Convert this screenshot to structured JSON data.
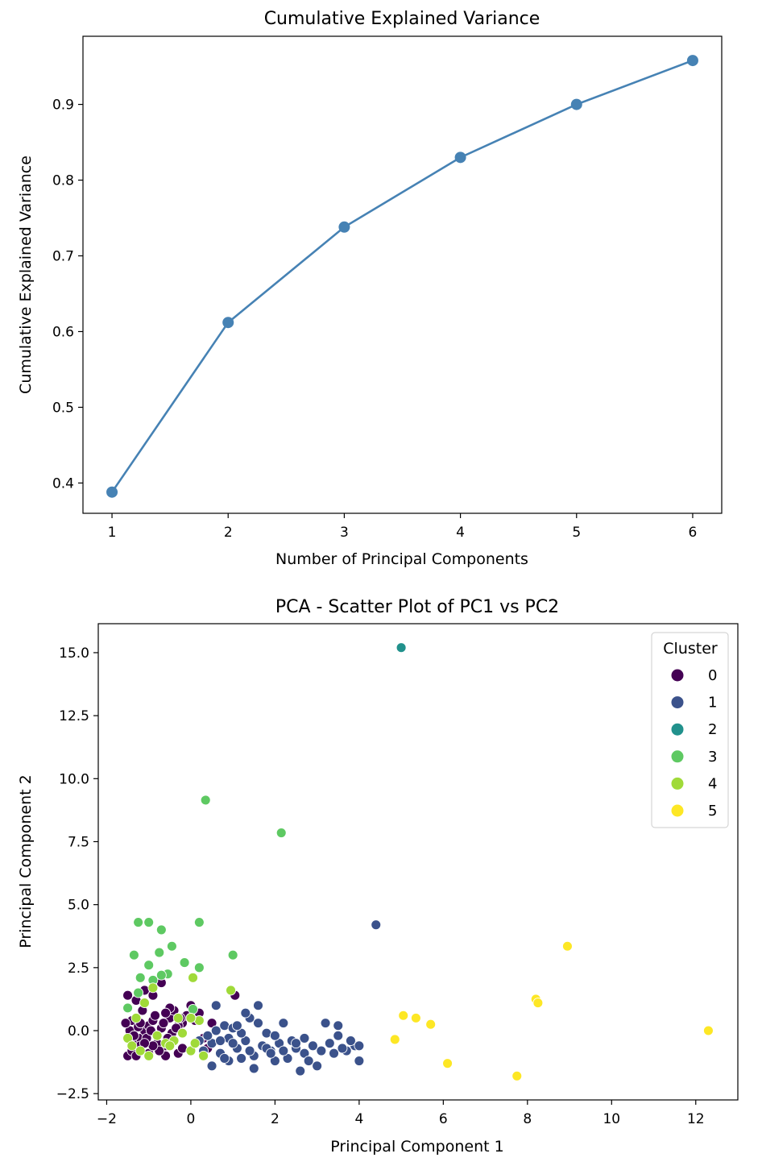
{
  "chart_data": [
    {
      "type": "line",
      "title": "Cumulative Explained Variance",
      "xlabel": "Number of Principal Components",
      "ylabel": "Cumulative Explained Variance",
      "x": [
        1,
        2,
        3,
        4,
        5,
        6
      ],
      "y": [
        0.388,
        0.612,
        0.738,
        0.83,
        0.9,
        0.958
      ],
      "xlim": [
        0.75,
        6.25
      ],
      "ylim": [
        0.36,
        0.99
      ],
      "xticks": [
        1,
        2,
        3,
        4,
        5,
        6
      ],
      "yticks": [
        0.4,
        0.5,
        0.6,
        0.7,
        0.8,
        0.9
      ],
      "color": "#4682b4",
      "grid": false
    },
    {
      "type": "scatter",
      "title": "PCA - Scatter Plot of PC1 vs PC2",
      "xlabel": "Principal Component 1",
      "ylabel": "Principal Component 2",
      "xlim": [
        -2.2,
        13.0
      ],
      "ylim": [
        -2.75,
        16.15
      ],
      "xticks": [
        -2,
        0,
        2,
        4,
        6,
        8,
        10,
        12
      ],
      "yticks": [
        -2.5,
        0.0,
        2.5,
        5.0,
        7.5,
        10.0,
        12.5,
        15.0
      ],
      "xtick_labels": [
        "−2",
        "0",
        "2",
        "4",
        "6",
        "8",
        "10",
        "12"
      ],
      "ytick_labels": [
        "−2.5",
        "0.0",
        "2.5",
        "5.0",
        "7.5",
        "10.0",
        "12.5",
        "15.0"
      ],
      "grid": false,
      "legend": {
        "title": "Cluster",
        "placement": "upper right"
      },
      "series": [
        {
          "name": "0",
          "color": "#440154",
          "points": [
            [
              -1.5,
              -1.0
            ],
            [
              -1.4,
              -0.8
            ],
            [
              -1.3,
              -0.5
            ],
            [
              -1.2,
              -0.3
            ],
            [
              -1.1,
              0.0
            ],
            [
              -1.0,
              0.2
            ],
            [
              -0.9,
              0.4
            ],
            [
              -0.8,
              -0.2
            ],
            [
              -0.7,
              0.1
            ],
            [
              -0.6,
              -0.6
            ],
            [
              -0.5,
              0.5
            ],
            [
              -0.4,
              0.8
            ],
            [
              -0.3,
              -0.9
            ],
            [
              -0.2,
              0.3
            ],
            [
              -0.1,
              0.6
            ],
            [
              0.0,
              1.0
            ],
            [
              -1.5,
              1.4
            ],
            [
              -1.3,
              1.2
            ],
            [
              -1.1,
              1.6
            ],
            [
              -0.9,
              1.4
            ],
            [
              -0.7,
              1.9
            ],
            [
              -0.5,
              0.9
            ],
            [
              -0.3,
              0.2
            ],
            [
              -1.4,
              0.4
            ],
            [
              -1.2,
              -0.6
            ],
            [
              -1.0,
              -0.9
            ],
            [
              -0.8,
              -0.5
            ],
            [
              -0.6,
              -1.0
            ],
            [
              -0.4,
              -0.4
            ],
            [
              -0.2,
              -0.7
            ],
            [
              0.1,
              0.4
            ],
            [
              0.3,
              -0.3
            ],
            [
              0.5,
              0.3
            ],
            [
              1.05,
              1.4
            ],
            [
              -1.45,
              0.0
            ],
            [
              -1.25,
              0.15
            ],
            [
              -1.05,
              -0.3
            ],
            [
              -0.85,
              0.6
            ],
            [
              -0.65,
              0.3
            ],
            [
              -0.45,
              -0.1
            ],
            [
              -0.25,
              0.5
            ],
            [
              -1.35,
              -0.2
            ],
            [
              -1.15,
              0.8
            ],
            [
              -0.95,
              0.0
            ],
            [
              -0.75,
              -0.8
            ],
            [
              -0.55,
              -0.3
            ],
            [
              -0.35,
              0.1
            ],
            [
              -1.55,
              0.3
            ],
            [
              -1.2,
              0.3
            ],
            [
              -0.9,
              -0.6
            ],
            [
              0.2,
              0.7
            ],
            [
              -0.6,
              0.7
            ],
            [
              -1.3,
              -1.0
            ],
            [
              -1.1,
              -0.5
            ],
            [
              0.4,
              -0.7
            ]
          ]
        },
        {
          "name": "1",
          "color": "#3b528b",
          "points": [
            [
              0.3,
              -0.8
            ],
            [
              0.5,
              -0.5
            ],
            [
              0.7,
              -0.9
            ],
            [
              0.9,
              -0.3
            ],
            [
              1.1,
              -0.7
            ],
            [
              1.3,
              -0.4
            ],
            [
              1.5,
              -1.0
            ],
            [
              1.7,
              -0.6
            ],
            [
              1.9,
              -0.8
            ],
            [
              2.1,
              -0.5
            ],
            [
              2.3,
              -1.1
            ],
            [
              2.5,
              -0.7
            ],
            [
              2.7,
              -0.9
            ],
            [
              2.9,
              -0.6
            ],
            [
              3.1,
              -0.8
            ],
            [
              3.3,
              -0.5
            ],
            [
              3.5,
              -0.2
            ],
            [
              3.7,
              -0.8
            ],
            [
              3.9,
              -0.6
            ],
            [
              4.0,
              -1.2
            ],
            [
              0.6,
              0.0
            ],
            [
              0.8,
              0.2
            ],
            [
              1.0,
              0.1
            ],
            [
              1.2,
              -0.1
            ],
            [
              1.4,
              0.5
            ],
            [
              1.6,
              0.3
            ],
            [
              1.8,
              -0.1
            ],
            [
              2.0,
              -0.2
            ],
            [
              2.2,
              0.3
            ],
            [
              2.4,
              -0.4
            ],
            [
              2.6,
              -1.6
            ],
            [
              3.0,
              -1.4
            ],
            [
              3.2,
              0.3
            ],
            [
              3.5,
              0.2
            ],
            [
              0.6,
              1.0
            ],
            [
              1.3,
              0.7
            ],
            [
              1.6,
              1.0
            ],
            [
              0.5,
              -1.4
            ],
            [
              0.9,
              -1.2
            ],
            [
              1.5,
              -1.5
            ],
            [
              2.0,
              -1.2
            ],
            [
              2.8,
              -1.2
            ],
            [
              4.0,
              -0.6
            ],
            [
              4.4,
              4.2
            ],
            [
              0.4,
              -0.2
            ],
            [
              0.7,
              -0.4
            ],
            [
              1.0,
              -0.5
            ],
            [
              1.2,
              -1.1
            ],
            [
              1.4,
              -0.8
            ],
            [
              1.8,
              -0.7
            ],
            [
              2.2,
              -0.8
            ],
            [
              2.5,
              -0.5
            ],
            [
              3.4,
              -0.9
            ],
            [
              3.8,
              -0.4
            ],
            [
              0.8,
              -1.1
            ],
            [
              1.1,
              0.2
            ],
            [
              1.9,
              -0.9
            ],
            [
              2.7,
              -0.3
            ],
            [
              3.6,
              -0.7
            ],
            [
              0.2,
              -0.4
            ]
          ]
        },
        {
          "name": "2",
          "color": "#21918c",
          "points": [
            [
              5.0,
              15.2
            ]
          ]
        },
        {
          "name": "3",
          "color": "#5ec962",
          "points": [
            [
              0.35,
              9.15
            ],
            [
              2.15,
              7.85
            ],
            [
              -1.25,
              4.3
            ],
            [
              -1.0,
              4.3
            ],
            [
              0.2,
              4.3
            ],
            [
              -0.7,
              4.0
            ],
            [
              -0.45,
              3.35
            ],
            [
              -0.75,
              3.1
            ],
            [
              -1.35,
              3.0
            ],
            [
              1.0,
              3.0
            ],
            [
              -0.15,
              2.7
            ],
            [
              -1.0,
              2.6
            ],
            [
              0.2,
              2.5
            ],
            [
              -0.55,
              2.25
            ],
            [
              -1.2,
              2.1
            ],
            [
              -0.9,
              2.0
            ],
            [
              -0.7,
              2.2
            ],
            [
              -1.5,
              0.9
            ],
            [
              -1.25,
              1.5
            ],
            [
              0.05,
              0.85
            ]
          ]
        },
        {
          "name": "4",
          "color": "#a0da39",
          "points": [
            [
              0.05,
              2.1
            ],
            [
              0.95,
              1.6
            ],
            [
              -1.5,
              -0.3
            ],
            [
              -1.4,
              -0.6
            ],
            [
              -1.2,
              -0.8
            ],
            [
              -1.0,
              -1.0
            ],
            [
              -0.8,
              -0.2
            ],
            [
              -0.6,
              -0.5
            ],
            [
              -0.4,
              -0.4
            ],
            [
              -0.2,
              -0.1
            ],
            [
              0.0,
              -0.8
            ],
            [
              0.2,
              0.4
            ],
            [
              -1.3,
              0.5
            ],
            [
              -1.1,
              1.1
            ],
            [
              -0.9,
              1.7
            ],
            [
              -0.5,
              -0.6
            ],
            [
              0.1,
              -0.5
            ],
            [
              0.3,
              -1.0
            ],
            [
              -0.3,
              0.5
            ],
            [
              0.0,
              0.5
            ]
          ]
        },
        {
          "name": "5",
          "color": "#fde725",
          "points": [
            [
              8.95,
              3.35
            ],
            [
              8.2,
              1.25
            ],
            [
              8.25,
              1.1
            ],
            [
              5.05,
              0.6
            ],
            [
              5.35,
              0.5
            ],
            [
              5.7,
              0.25
            ],
            [
              4.85,
              -0.35
            ],
            [
              6.1,
              -1.3
            ],
            [
              7.75,
              -1.8
            ],
            [
              12.3,
              0.0
            ]
          ]
        }
      ]
    }
  ]
}
